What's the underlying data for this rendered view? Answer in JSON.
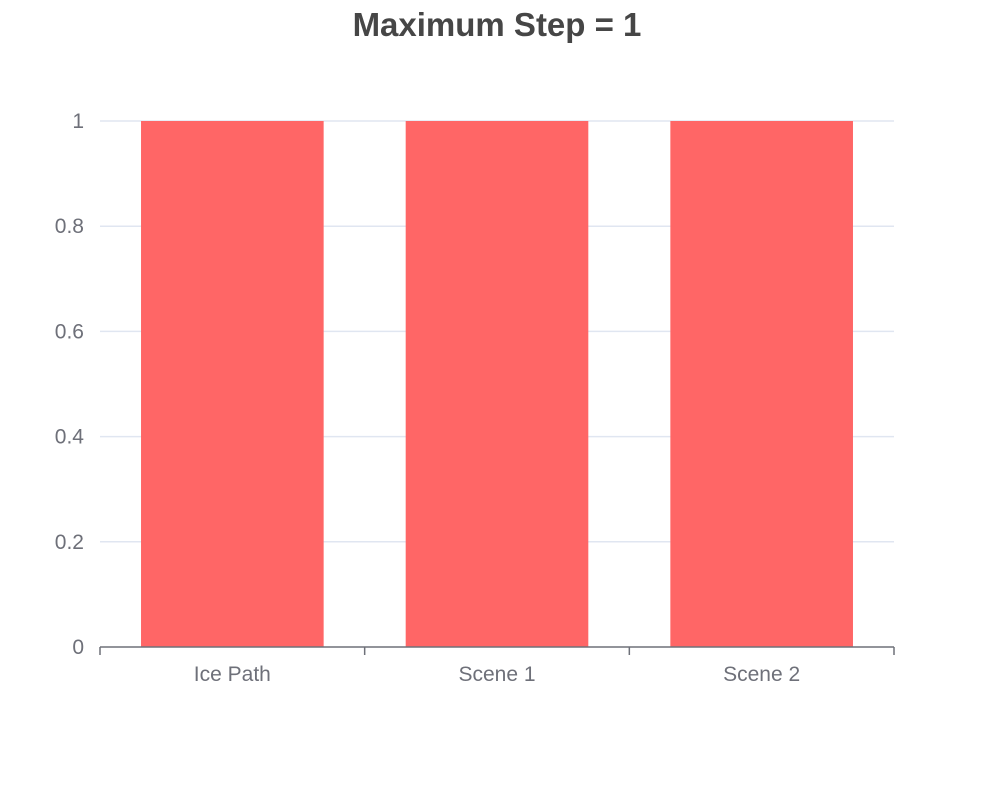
{
  "chart_data": {
    "type": "bar",
    "title": "Maximum Step = 1",
    "categories": [
      "Ice Path",
      "Scene 1",
      "Scene 2"
    ],
    "series": [
      {
        "values": [
          1,
          1,
          1
        ],
        "color": "#ff6666"
      }
    ],
    "y_ticks": [
      "0",
      "0.2",
      "0.4",
      "0.6",
      "0.8",
      "1"
    ],
    "ylim": [
      0,
      1
    ],
    "grid": true,
    "legend": "none",
    "colors": {
      "bar": "#ff6666",
      "grid": "#e0e6f1",
      "axis": "#6e7079",
      "title": "#464646"
    }
  }
}
